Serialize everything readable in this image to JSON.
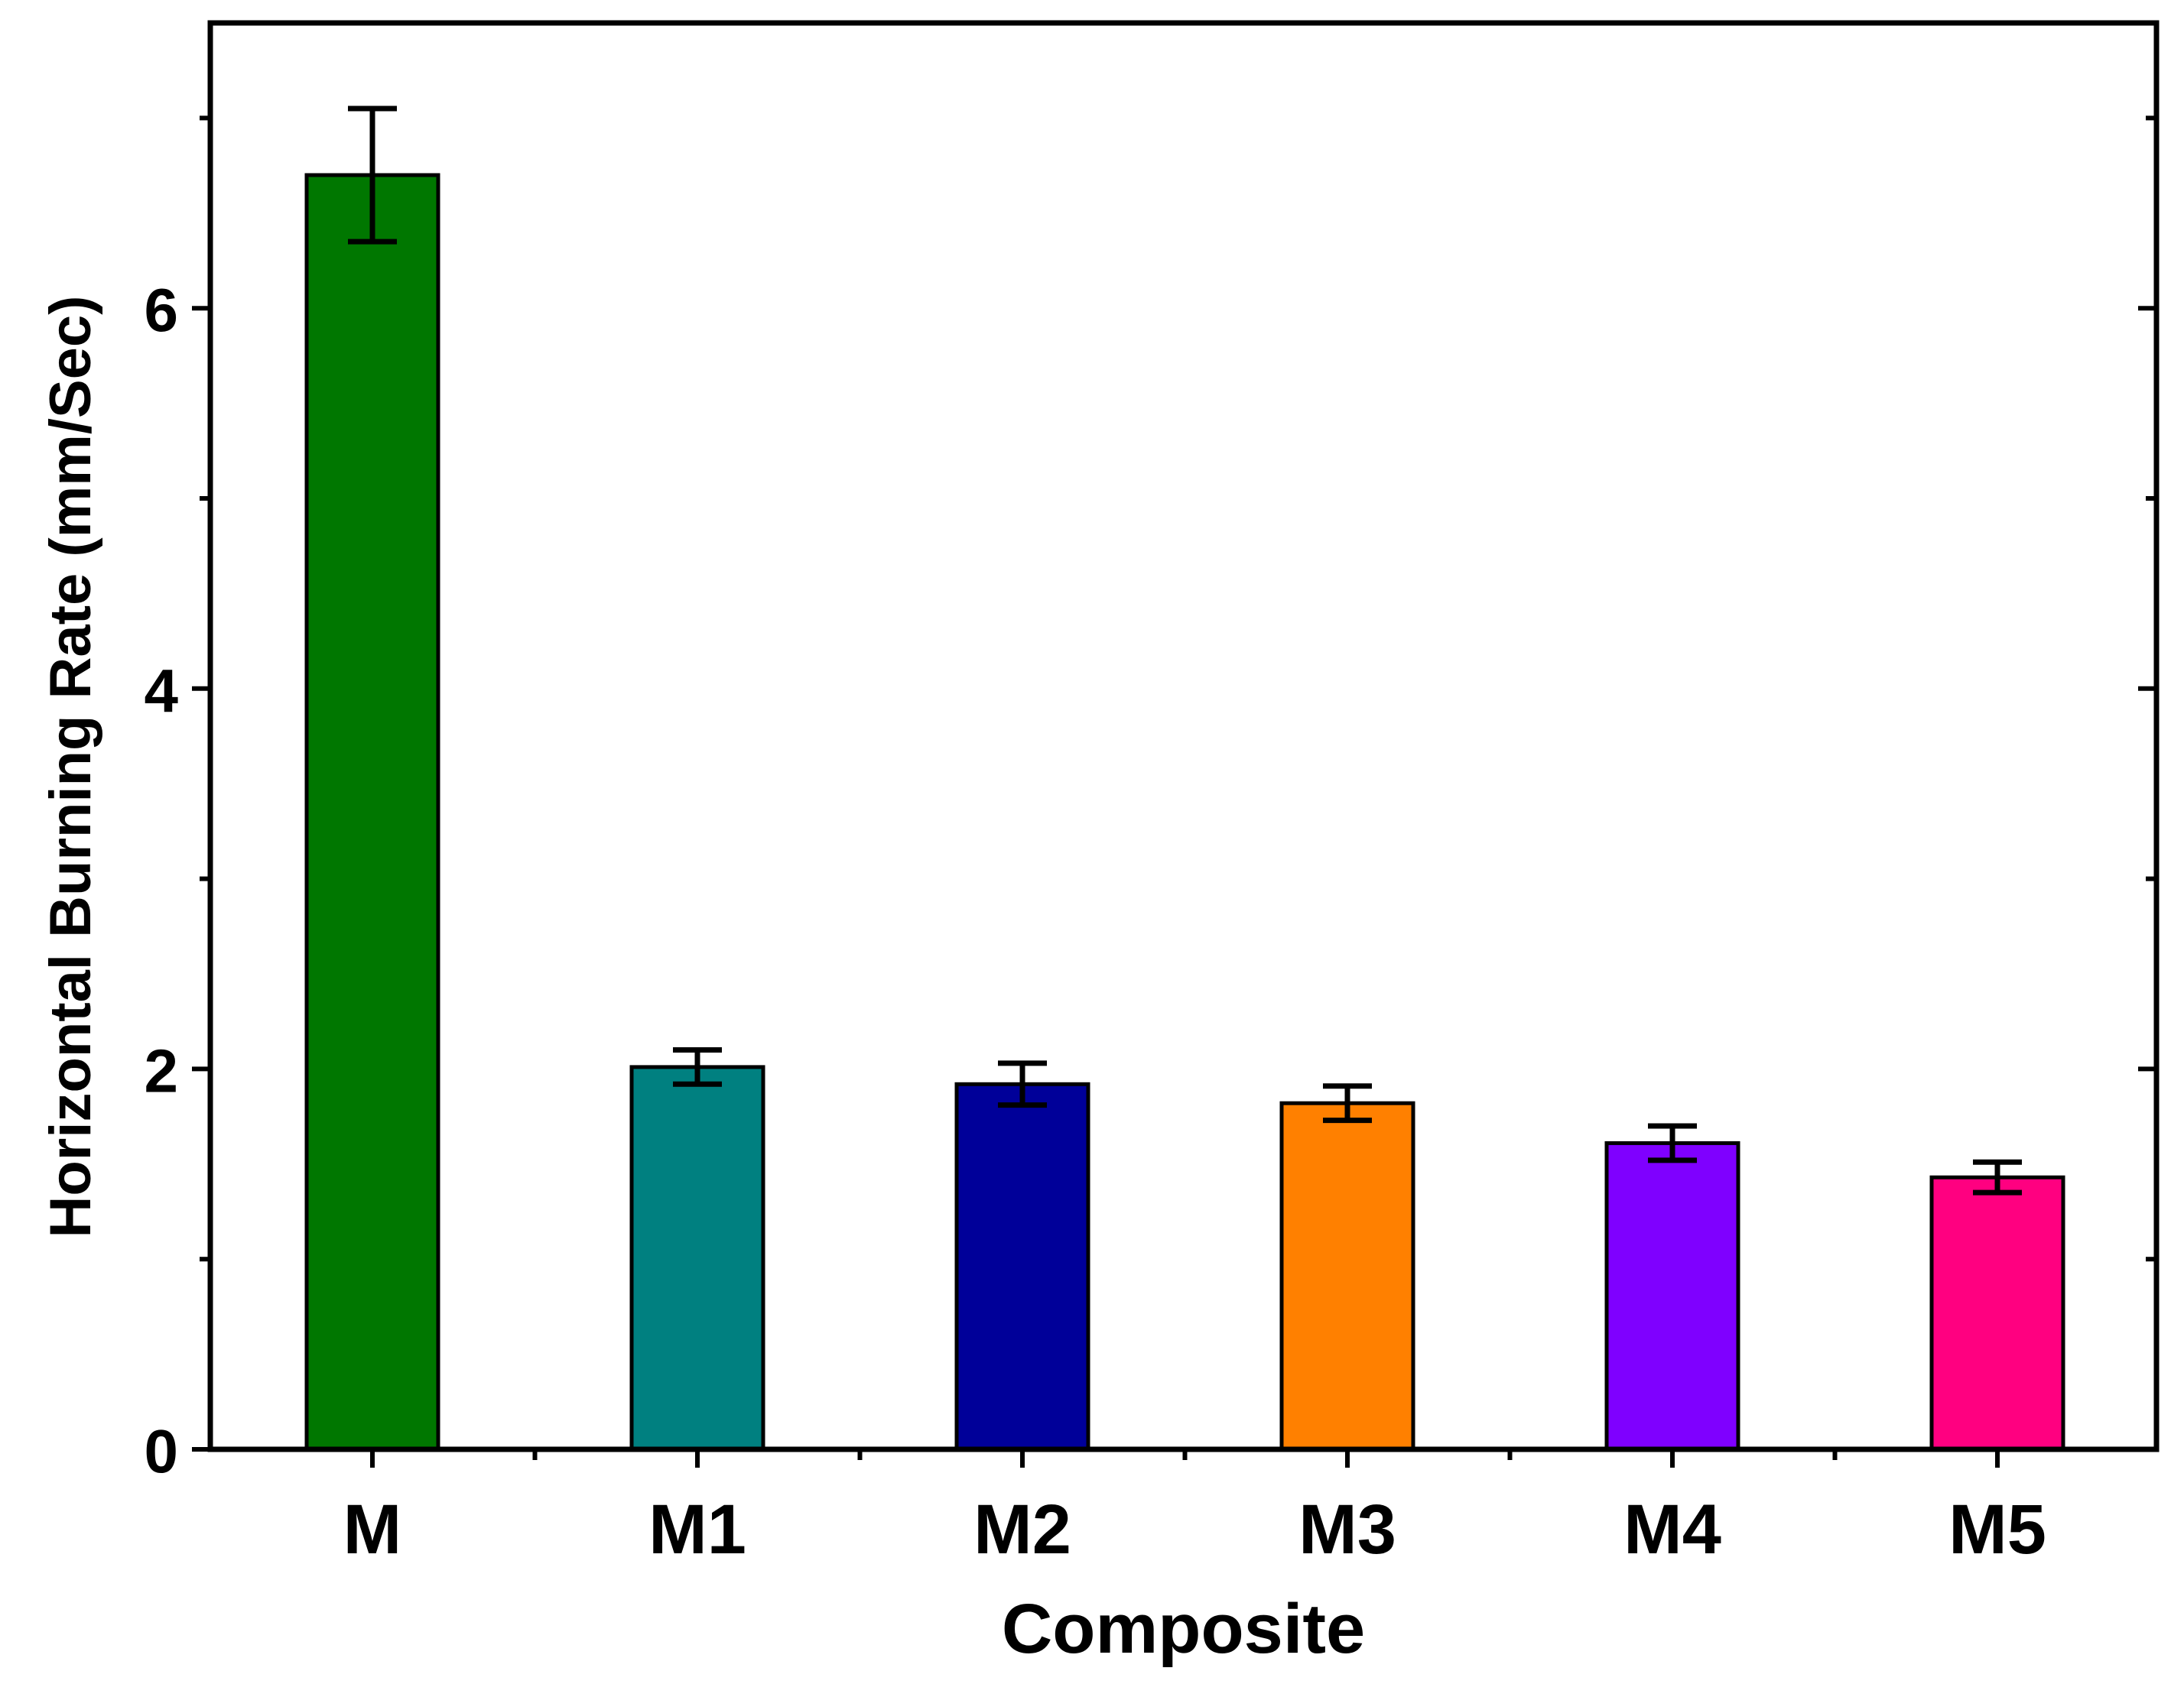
{
  "chart_data": {
    "type": "bar",
    "xlabel": "Composite",
    "ylabel": "Horizontal Burning Rate (mm/Sec)",
    "categories": [
      "M",
      "M1",
      "M2",
      "M3",
      "M4",
      "M5"
    ],
    "values": [
      6.7,
      2.01,
      1.92,
      1.82,
      1.61,
      1.43
    ],
    "errors": [
      0.35,
      0.09,
      0.11,
      0.09,
      0.09,
      0.08
    ],
    "colors": [
      "#007700",
      "#008080",
      "#000099",
      "#FF8000",
      "#7F00FF",
      "#FF0080"
    ],
    "ylim": [
      0,
      7.5
    ],
    "yticks": [
      0,
      2,
      4,
      6
    ],
    "ytick_labels": [
      "0",
      "2",
      "4",
      "6"
    ],
    "grid": false,
    "legend": "none"
  }
}
